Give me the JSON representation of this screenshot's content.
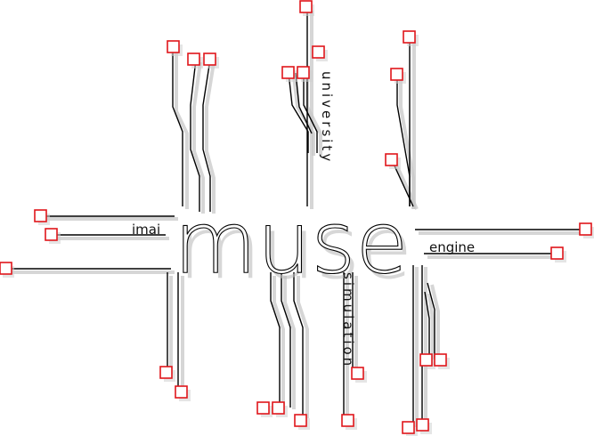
{
  "logo": {
    "main": "muse",
    "left_word": "imai",
    "right_word": "engine",
    "top_vertical": "university",
    "bottom_vertical": "simulation"
  },
  "colors": {
    "pad_outline": "#e0161b",
    "trace": "#000000",
    "shadow": "#c8c8c8",
    "background": "#ffffff"
  }
}
